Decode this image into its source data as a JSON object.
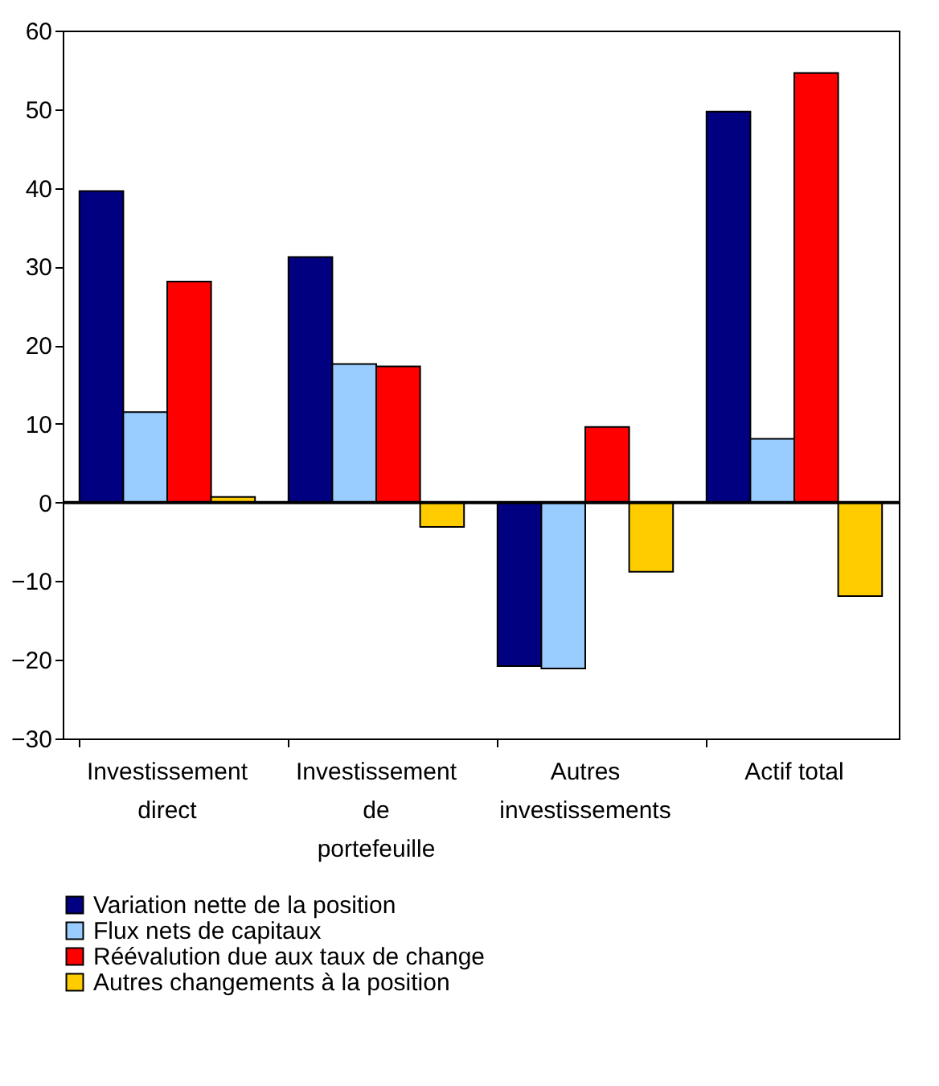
{
  "chart_data": {
    "type": "bar",
    "categories": [
      "Investissement direct",
      "Investissement de portefeuille",
      "Autres investissements",
      "Actif total"
    ],
    "series": [
      {
        "name": "Variation nette de la position",
        "color": "#000080",
        "values": [
          39.6,
          31.2,
          -20.8,
          49.7
        ]
      },
      {
        "name": "Flux nets de capitaux",
        "color": "#99ccff",
        "values": [
          11.5,
          17.6,
          -21.1,
          8.1
        ]
      },
      {
        "name": "Réévalution due aux taux de change",
        "color": "#ff0000",
        "values": [
          28.1,
          17.3,
          9.6,
          54.6
        ]
      },
      {
        "name": "Autres changements à la position",
        "color": "#ffcc00",
        "values": [
          0.7,
          -3.1,
          -8.8,
          -11.9
        ]
      }
    ],
    "ylim": [
      -30,
      60
    ],
    "yticks": [
      -30,
      -20,
      -10,
      0,
      10,
      20,
      30,
      40,
      50,
      60
    ],
    "ref_lines": [
      {
        "axis": "y",
        "value": 0
      }
    ],
    "grid": false,
    "legend": "bottom"
  }
}
